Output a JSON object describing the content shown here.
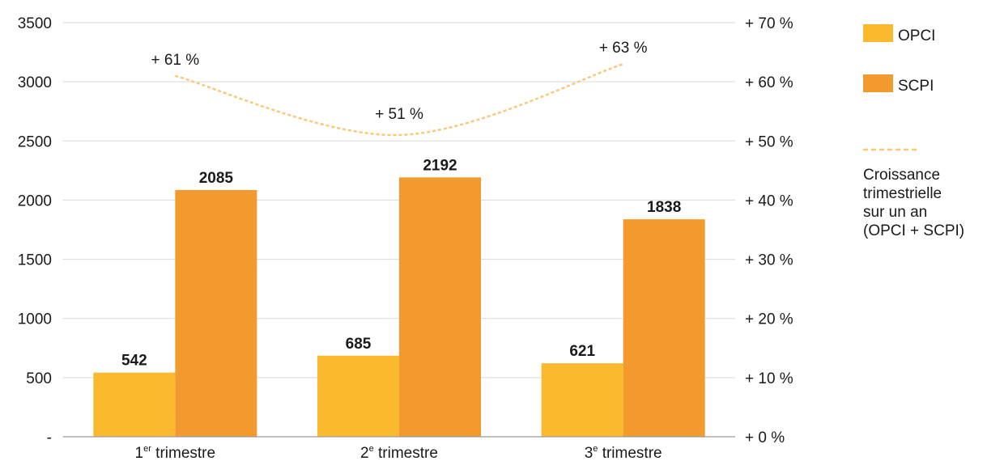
{
  "chart_data": {
    "type": "bar",
    "categories": [
      {
        "num": "1",
        "sup": "er",
        "rest": " trimestre"
      },
      {
        "num": "2",
        "sup": "e",
        "rest": " trimestre"
      },
      {
        "num": "3",
        "sup": "e",
        "rest": " trimestre"
      }
    ],
    "series": [
      {
        "name": "OPCI",
        "values": [
          542,
          685,
          621
        ],
        "labels": [
          "542",
          "685",
          "621"
        ],
        "color": "#FBB92D"
      },
      {
        "name": "SCPI",
        "values": [
          2085,
          2192,
          1838
        ],
        "labels": [
          "2085",
          "2192",
          "1838"
        ],
        "color": "#F39A2E"
      }
    ],
    "line_series": {
      "name_lines": [
        "Croissance",
        "trimestrielle",
        "sur un an",
        "(OPCI + SCPI)"
      ],
      "values": [
        61,
        51,
        63
      ],
      "labels": [
        "+ 61 %",
        "+ 51 %",
        "+ 63 %"
      ],
      "color": "#FBC87A",
      "axis": "right"
    },
    "left_axis": {
      "ylim": [
        0,
        3500
      ],
      "ticks": [
        0,
        500,
        1000,
        1500,
        2000,
        2500,
        3000,
        3500
      ],
      "tick_labels": [
        "-",
        "500",
        "1000",
        "1500",
        "2000",
        "2500",
        "3000",
        "3500"
      ]
    },
    "right_axis": {
      "ylim": [
        0,
        70
      ],
      "ticks": [
        0,
        10,
        20,
        30,
        40,
        50,
        60,
        70
      ],
      "tick_labels": [
        "+ 0 %",
        "+ 10 %",
        "+ 20 %",
        "+ 30 %",
        "+ 40 %",
        "+ 50 %",
        "+ 60 %",
        "+ 70 %"
      ]
    },
    "grid": true,
    "legend_position": "right"
  }
}
